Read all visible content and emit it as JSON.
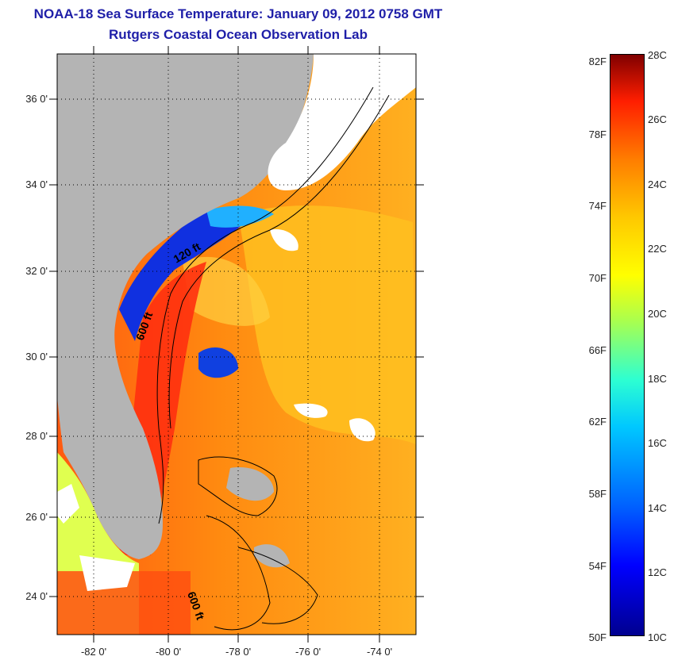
{
  "header": {
    "title": "NOAA-18 Sea Surface Temperature:  January 09, 2012 0758 GMT",
    "subtitle": "Rutgers Coastal Ocean Observation Lab"
  },
  "map": {
    "lat_labels": [
      "36 0'",
      "34 0'",
      "32 0'",
      "30 0'",
      "28 0'",
      "26 0'",
      "24 0'"
    ],
    "lon_labels": [
      "-82 0'",
      "-80 0'",
      "-78 0'",
      "-76 0'",
      "-74 0'"
    ],
    "contour_labels": [
      "120 ft",
      "600 ft",
      "600 ft"
    ],
    "colors": {
      "land": "#b4b4b4",
      "cloud": "#ffffff",
      "cold": "#1030e0",
      "warm": "#ff9a10",
      "hot": "#ff3a10"
    }
  },
  "colorbar": {
    "fahrenheit_labels": [
      "82F",
      "78F",
      "74F",
      "70F",
      "66F",
      "62F",
      "58F",
      "54F",
      "50F"
    ],
    "celsius_labels": [
      "28C",
      "26C",
      "24C",
      "22C",
      "20C",
      "18C",
      "16C",
      "14C",
      "12C",
      "10C"
    ]
  }
}
